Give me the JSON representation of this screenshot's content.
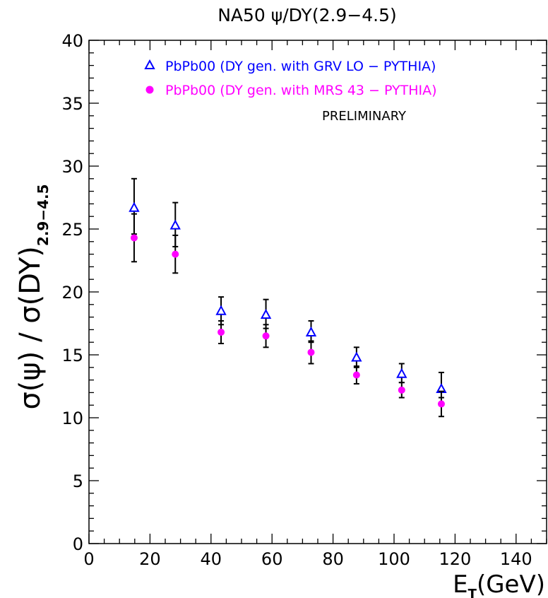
{
  "chart_data": {
    "type": "scatter",
    "title": "NA50  ψ/DY(2.9−4.5)",
    "xlabel": {
      "main": "E",
      "sub": "T",
      "rest": "(GeV)"
    },
    "ylabel": {
      "main": "σ(ψ) / σ(DY)",
      "sub": "2.9−4.5"
    },
    "xlim": [
      0,
      150
    ],
    "ylim": [
      0,
      40
    ],
    "xticks": [
      0,
      20,
      40,
      60,
      80,
      100,
      120,
      140
    ],
    "yticks": [
      0,
      5,
      10,
      15,
      20,
      25,
      30,
      35,
      40
    ],
    "grid": false,
    "legend_position": "top-right",
    "annotation": "PRELIMINARY",
    "series": [
      {
        "name": "PbPb00 (DY gen. with GRV LO − PYTHIA)",
        "marker": "open-triangle",
        "color": "#0000ff",
        "x": [
          14.8,
          28.3,
          43.3,
          58.0,
          72.8,
          87.7,
          102.5,
          115.5
        ],
        "y": [
          26.7,
          25.3,
          18.5,
          18.2,
          16.8,
          14.8,
          13.5,
          12.3
        ],
        "err_low": [
          2.1,
          1.7,
          1.1,
          1.1,
          0.8,
          0.8,
          0.7,
          0.7
        ],
        "err_high": [
          2.3,
          1.8,
          1.1,
          1.2,
          0.9,
          0.8,
          0.8,
          1.3
        ]
      },
      {
        "name": "PbPb00 (DY gen. with MRS 43 − PYTHIA)",
        "marker": "filled-circle",
        "color": "#ff00ff",
        "x": [
          14.8,
          28.3,
          43.3,
          58.0,
          72.8,
          87.7,
          102.5,
          115.5
        ],
        "y": [
          24.3,
          23.0,
          16.8,
          16.5,
          15.2,
          13.4,
          12.2,
          11.1
        ],
        "err_low": [
          1.9,
          1.5,
          0.9,
          0.9,
          0.9,
          0.7,
          0.6,
          1.0
        ],
        "err_high": [
          1.9,
          1.5,
          0.9,
          0.9,
          0.9,
          0.7,
          0.6,
          1.0
        ]
      }
    ]
  }
}
